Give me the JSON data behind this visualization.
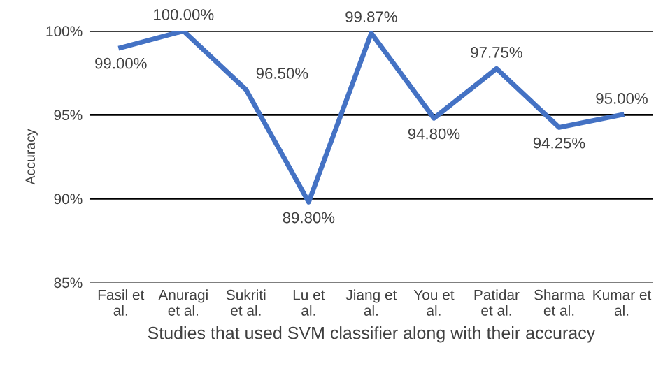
{
  "chart_data": {
    "type": "line",
    "xlabel": "Studies that used SVM classifier along with their accuracy",
    "ylabel": "Accuracy",
    "categories": [
      "Fasil et al.",
      "Anuragi et al.",
      "Sukriti et al.",
      "Lu et al.",
      "Jiang et al.",
      "You et al.",
      "Patidar et al.",
      "Sharma et al.",
      "Kumar et al."
    ],
    "series": [
      {
        "color": "#4472c4",
        "values": [
          99.0,
          100.0,
          96.5,
          89.8,
          99.87,
          94.8,
          97.75,
          94.25,
          95.0
        ],
        "value_labels": [
          "99.00%",
          "100.00%",
          "96.50%",
          "89.80%",
          "99.87%",
          "94.80%",
          "97.75%",
          "94.25%",
          "95.00%"
        ]
      }
    ],
    "ylim": [
      85,
      100
    ],
    "yticks": [
      {
        "value": 85,
        "label": "85%"
      },
      {
        "value": 90,
        "label": "90%"
      },
      {
        "value": 95,
        "label": "95%"
      },
      {
        "value": 100,
        "label": "100%"
      }
    ],
    "grid": "y",
    "legend": false,
    "marker": "none",
    "line_style": "solid"
  }
}
